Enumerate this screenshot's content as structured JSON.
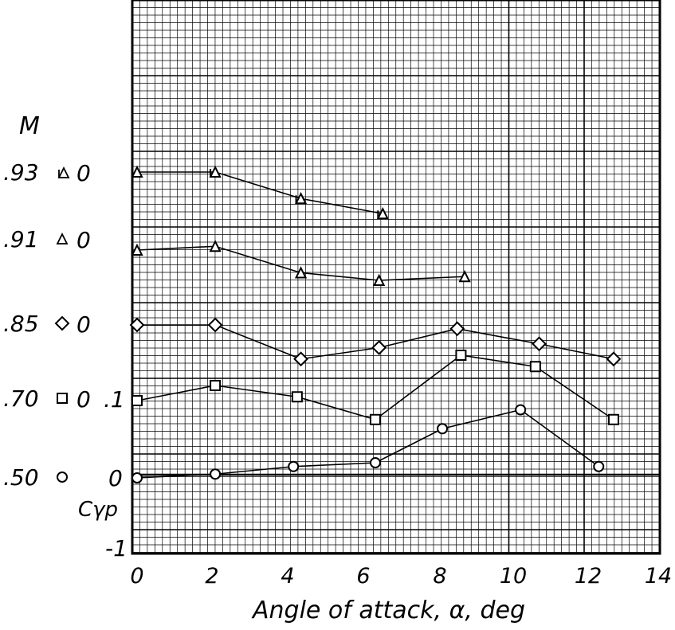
{
  "chart_data": {
    "type": "line",
    "xlabel": "Angle of attack, α, deg",
    "ylabel": "Cγp",
    "legend_title": "M",
    "xlim": [
      0,
      14
    ],
    "x_ticks": [
      "0",
      "2",
      "4",
      "6",
      "8",
      "10",
      "12",
      "14"
    ],
    "y_tick_labels": {
      "minus_one": "-1",
      "zero": "0",
      "one": ".1"
    },
    "grid": true,
    "offset_note": "Curves are offset vertically; each series has its own zero line.",
    "series": [
      {
        "name": ".50",
        "marker": "circle",
        "zero_label": "0",
        "x": [
          0,
          2.1,
          4.2,
          6.4,
          8.2,
          10.3,
          12.4
        ],
        "y": [
          0.0,
          0.005,
          0.015,
          0.02,
          0.065,
          0.09,
          0.015
        ]
      },
      {
        "name": ".70",
        "marker": "square",
        "zero_label": "0",
        "x": [
          0,
          2.1,
          4.3,
          6.4,
          8.7,
          10.7,
          12.8
        ],
        "y": [
          0.0,
          0.02,
          0.005,
          -0.025,
          0.06,
          0.045,
          -0.025
        ]
      },
      {
        "name": ".85",
        "marker": "diamond",
        "zero_label": "0",
        "x": [
          0,
          2.1,
          4.4,
          6.5,
          8.6,
          10.8,
          12.8
        ],
        "y": [
          0.0,
          0.0,
          -0.045,
          -0.03,
          -0.005,
          -0.025,
          -0.045
        ]
      },
      {
        "name": ".91",
        "marker": "triangle",
        "zero_label": "0",
        "x": [
          0,
          2.1,
          4.4,
          6.5,
          8.8
        ],
        "y": [
          0.0,
          0.005,
          -0.03,
          -0.04,
          -0.035
        ]
      },
      {
        "name": ".93",
        "marker": "flagged-triangle",
        "zero_label": "0",
        "x": [
          0,
          2.1,
          4.4,
          6.6
        ],
        "y": [
          0.0,
          0.0,
          -0.035,
          -0.055
        ]
      }
    ]
  }
}
